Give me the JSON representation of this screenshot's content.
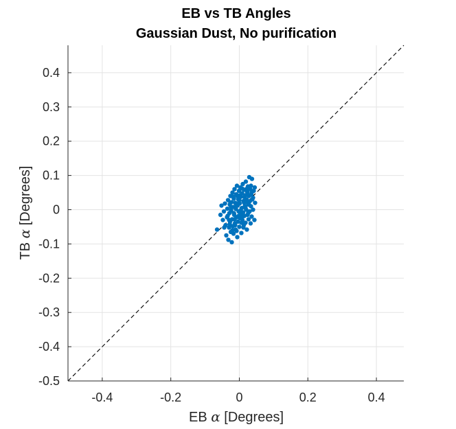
{
  "chart_data": {
    "type": "scatter",
    "title": "EB vs TB Angles",
    "subtitle": "Gaussian Dust, No purification",
    "xlabel": {
      "prefix": "EB ",
      "symbol": "α",
      "suffix": " [Degrees]"
    },
    "ylabel": {
      "prefix": "TB ",
      "symbol": "α",
      "suffix": " [Degrees]"
    },
    "xlim": [
      -0.5,
      0.48
    ],
    "ylim": [
      -0.5,
      0.48
    ],
    "xticks": [
      {
        "value": -0.4,
        "label": "-0.4"
      },
      {
        "value": -0.2,
        "label": "-0.2"
      },
      {
        "value": 0,
        "label": "0"
      },
      {
        "value": 0.2,
        "label": "0.2"
      },
      {
        "value": 0.4,
        "label": "0.4"
      }
    ],
    "yticks": [
      {
        "value": -0.5,
        "label": "-0.5"
      },
      {
        "value": -0.4,
        "label": "-0.4"
      },
      {
        "value": -0.3,
        "label": "-0.3"
      },
      {
        "value": -0.2,
        "label": "-0.2"
      },
      {
        "value": -0.1,
        "label": "-0.1"
      },
      {
        "value": 0,
        "label": "0"
      },
      {
        "value": 0.1,
        "label": "0.1"
      },
      {
        "value": 0.2,
        "label": "0.2"
      },
      {
        "value": 0.3,
        "label": "0.3"
      },
      {
        "value": 0.4,
        "label": "0.4"
      }
    ],
    "grid": true,
    "reference_line": {
      "style": "dashed",
      "color": "#000000",
      "from": [
        -0.5,
        -0.5
      ],
      "to": [
        0.48,
        0.48
      ]
    },
    "marker_color": "#0072BD",
    "points": [
      [
        -0.065,
        -0.058
      ],
      [
        -0.055,
        -0.015
      ],
      [
        -0.052,
        0.012
      ],
      [
        -0.048,
        -0.03
      ],
      [
        -0.045,
        -0.005
      ],
      [
        -0.042,
        0.018
      ],
      [
        -0.04,
        -0.045
      ],
      [
        -0.038,
        -0.075
      ],
      [
        -0.036,
        -0.022
      ],
      [
        -0.035,
        0.003
      ],
      [
        -0.033,
        0.028
      ],
      [
        -0.032,
        -0.088
      ],
      [
        -0.03,
        -0.052
      ],
      [
        -0.029,
        -0.01
      ],
      [
        -0.028,
        0.015
      ],
      [
        -0.027,
        -0.035
      ],
      [
        -0.026,
        0.04
      ],
      [
        -0.025,
        -0.065
      ],
      [
        -0.024,
        -0.002
      ],
      [
        -0.023,
        0.022
      ],
      [
        -0.022,
        -0.095
      ],
      [
        -0.021,
        -0.028
      ],
      [
        -0.02,
        0.05
      ],
      [
        -0.019,
        -0.048
      ],
      [
        -0.018,
        0.008
      ],
      [
        -0.017,
        -0.07
      ],
      [
        -0.016,
        0.032
      ],
      [
        -0.015,
        -0.015
      ],
      [
        -0.014,
        0.06
      ],
      [
        -0.013,
        -0.04
      ],
      [
        -0.012,
        0.02
      ],
      [
        -0.011,
        -0.058
      ],
      [
        -0.01,
        0.002
      ],
      [
        -0.009,
        0.045
      ],
      [
        -0.008,
        -0.022
      ],
      [
        -0.007,
        0.07
      ],
      [
        -0.006,
        -0.08
      ],
      [
        -0.005,
        0.012
      ],
      [
        -0.004,
        -0.035
      ],
      [
        -0.003,
        0.03
      ],
      [
        -0.002,
        -0.005
      ],
      [
        -0.001,
        0.055
      ],
      [
        0.0,
        -0.05
      ],
      [
        0.001,
        0.018
      ],
      [
        0.002,
        -0.025
      ],
      [
        0.003,
        0.065
      ],
      [
        0.004,
        -0.012
      ],
      [
        0.005,
        0.038
      ],
      [
        0.006,
        -0.068
      ],
      [
        0.007,
        0.005
      ],
      [
        0.008,
        0.048
      ],
      [
        0.009,
        -0.03
      ],
      [
        0.01,
        0.075
      ],
      [
        0.011,
        -0.008
      ],
      [
        0.012,
        0.025
      ],
      [
        0.013,
        -0.045
      ],
      [
        0.014,
        0.058
      ],
      [
        0.015,
        -0.018
      ],
      [
        0.016,
        0.01
      ],
      [
        0.017,
        0.042
      ],
      [
        0.018,
        -0.038
      ],
      [
        0.019,
        0.082
      ],
      [
        0.02,
        0.0
      ],
      [
        0.021,
        0.03
      ],
      [
        0.022,
        -0.058
      ],
      [
        0.023,
        0.052
      ],
      [
        0.024,
        -0.015
      ],
      [
        0.025,
        0.068
      ],
      [
        0.026,
        0.015
      ],
      [
        0.027,
        -0.028
      ],
      [
        0.028,
        0.04
      ],
      [
        0.029,
        0.095
      ],
      [
        0.03,
        -0.005
      ],
      [
        0.031,
        0.025
      ],
      [
        0.032,
        0.06
      ],
      [
        0.033,
        -0.04
      ],
      [
        0.034,
        0.01
      ],
      [
        0.035,
        0.045
      ],
      [
        0.036,
        -0.02
      ],
      [
        0.037,
        0.09
      ],
      [
        0.038,
        0.03
      ],
      [
        0.04,
        0.0
      ],
      [
        0.042,
        0.055
      ],
      [
        0.044,
        -0.03
      ],
      [
        0.045,
        0.065
      ],
      [
        0.046,
        0.02
      ],
      [
        -0.028,
        -0.042
      ],
      [
        -0.018,
        0.038
      ],
      [
        -0.008,
        -0.062
      ],
      [
        0.002,
        0.042
      ],
      [
        0.012,
        -0.052
      ],
      [
        0.022,
        0.022
      ],
      [
        -0.034,
        -0.018
      ],
      [
        -0.024,
        0.008
      ],
      [
        -0.014,
        -0.028
      ],
      [
        -0.004,
        0.018
      ],
      [
        0.006,
        -0.038
      ],
      [
        0.016,
        0.035
      ],
      [
        0.026,
        -0.01
      ],
      [
        0.036,
        0.05
      ],
      [
        -0.02,
        -0.06
      ],
      [
        -0.01,
        0.01
      ],
      [
        0.0,
        0.028
      ],
      [
        0.01,
        -0.02
      ],
      [
        0.02,
        0.06
      ],
      [
        -0.026,
        0.02
      ],
      [
        -0.016,
        -0.01
      ],
      [
        -0.006,
        0.04
      ],
      [
        0.004,
        -0.002
      ],
      [
        0.014,
        0.02
      ],
      [
        0.024,
        0.045
      ],
      [
        0.034,
        0.07
      ],
      [
        -0.03,
        -0.03
      ],
      [
        -0.012,
        -0.045
      ],
      [
        0.008,
        0.062
      ],
      [
        0.018,
        0.005
      ],
      [
        0.028,
        0.015
      ],
      [
        -0.002,
        -0.018
      ],
      [
        -0.044,
        -0.052
      ],
      [
        0.04,
        0.035
      ]
    ]
  }
}
